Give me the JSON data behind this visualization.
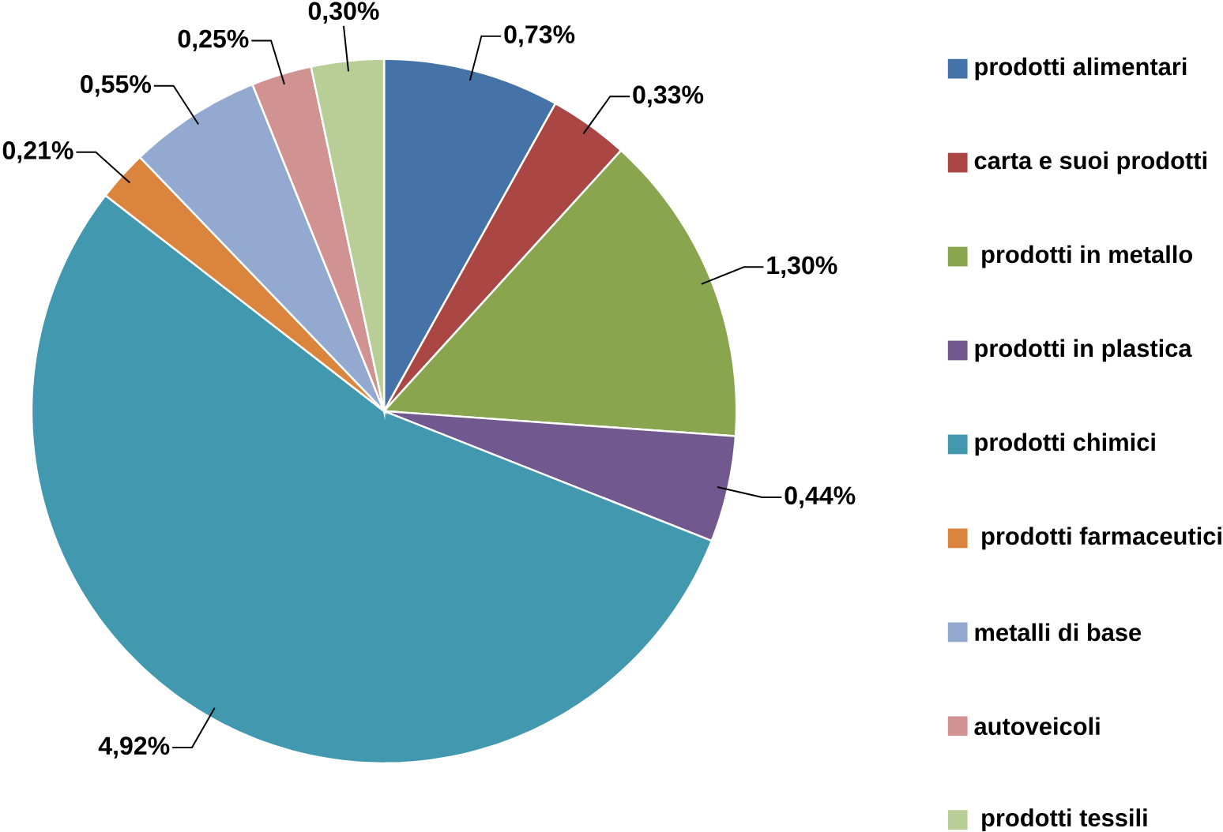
{
  "chart_data": {
    "type": "pie",
    "categories": [
      "prodotti alimentari",
      "carta e suoi prodotti",
      " prodotti in metallo",
      "prodotti in plastica",
      "prodotti chimici",
      " prodotti farmaceutici",
      "metalli di base",
      "autoveicoli",
      " prodotti tessili"
    ],
    "values": [
      0.73,
      0.33,
      1.3,
      0.44,
      4.92,
      0.21,
      0.55,
      0.25,
      0.3
    ],
    "value_labels": [
      "0,73%",
      "0,33%",
      "1,30%",
      "0,44%",
      "4,92%",
      "0,21%",
      "0,55%",
      "0,25%",
      "0,30%"
    ],
    "colors": [
      "#4572a7",
      "#aa4643",
      "#89a54e",
      "#71588f",
      "#4198af",
      "#db843d",
      "#93a9cf",
      "#d19392",
      "#b9cd96"
    ],
    "legend": "right"
  }
}
